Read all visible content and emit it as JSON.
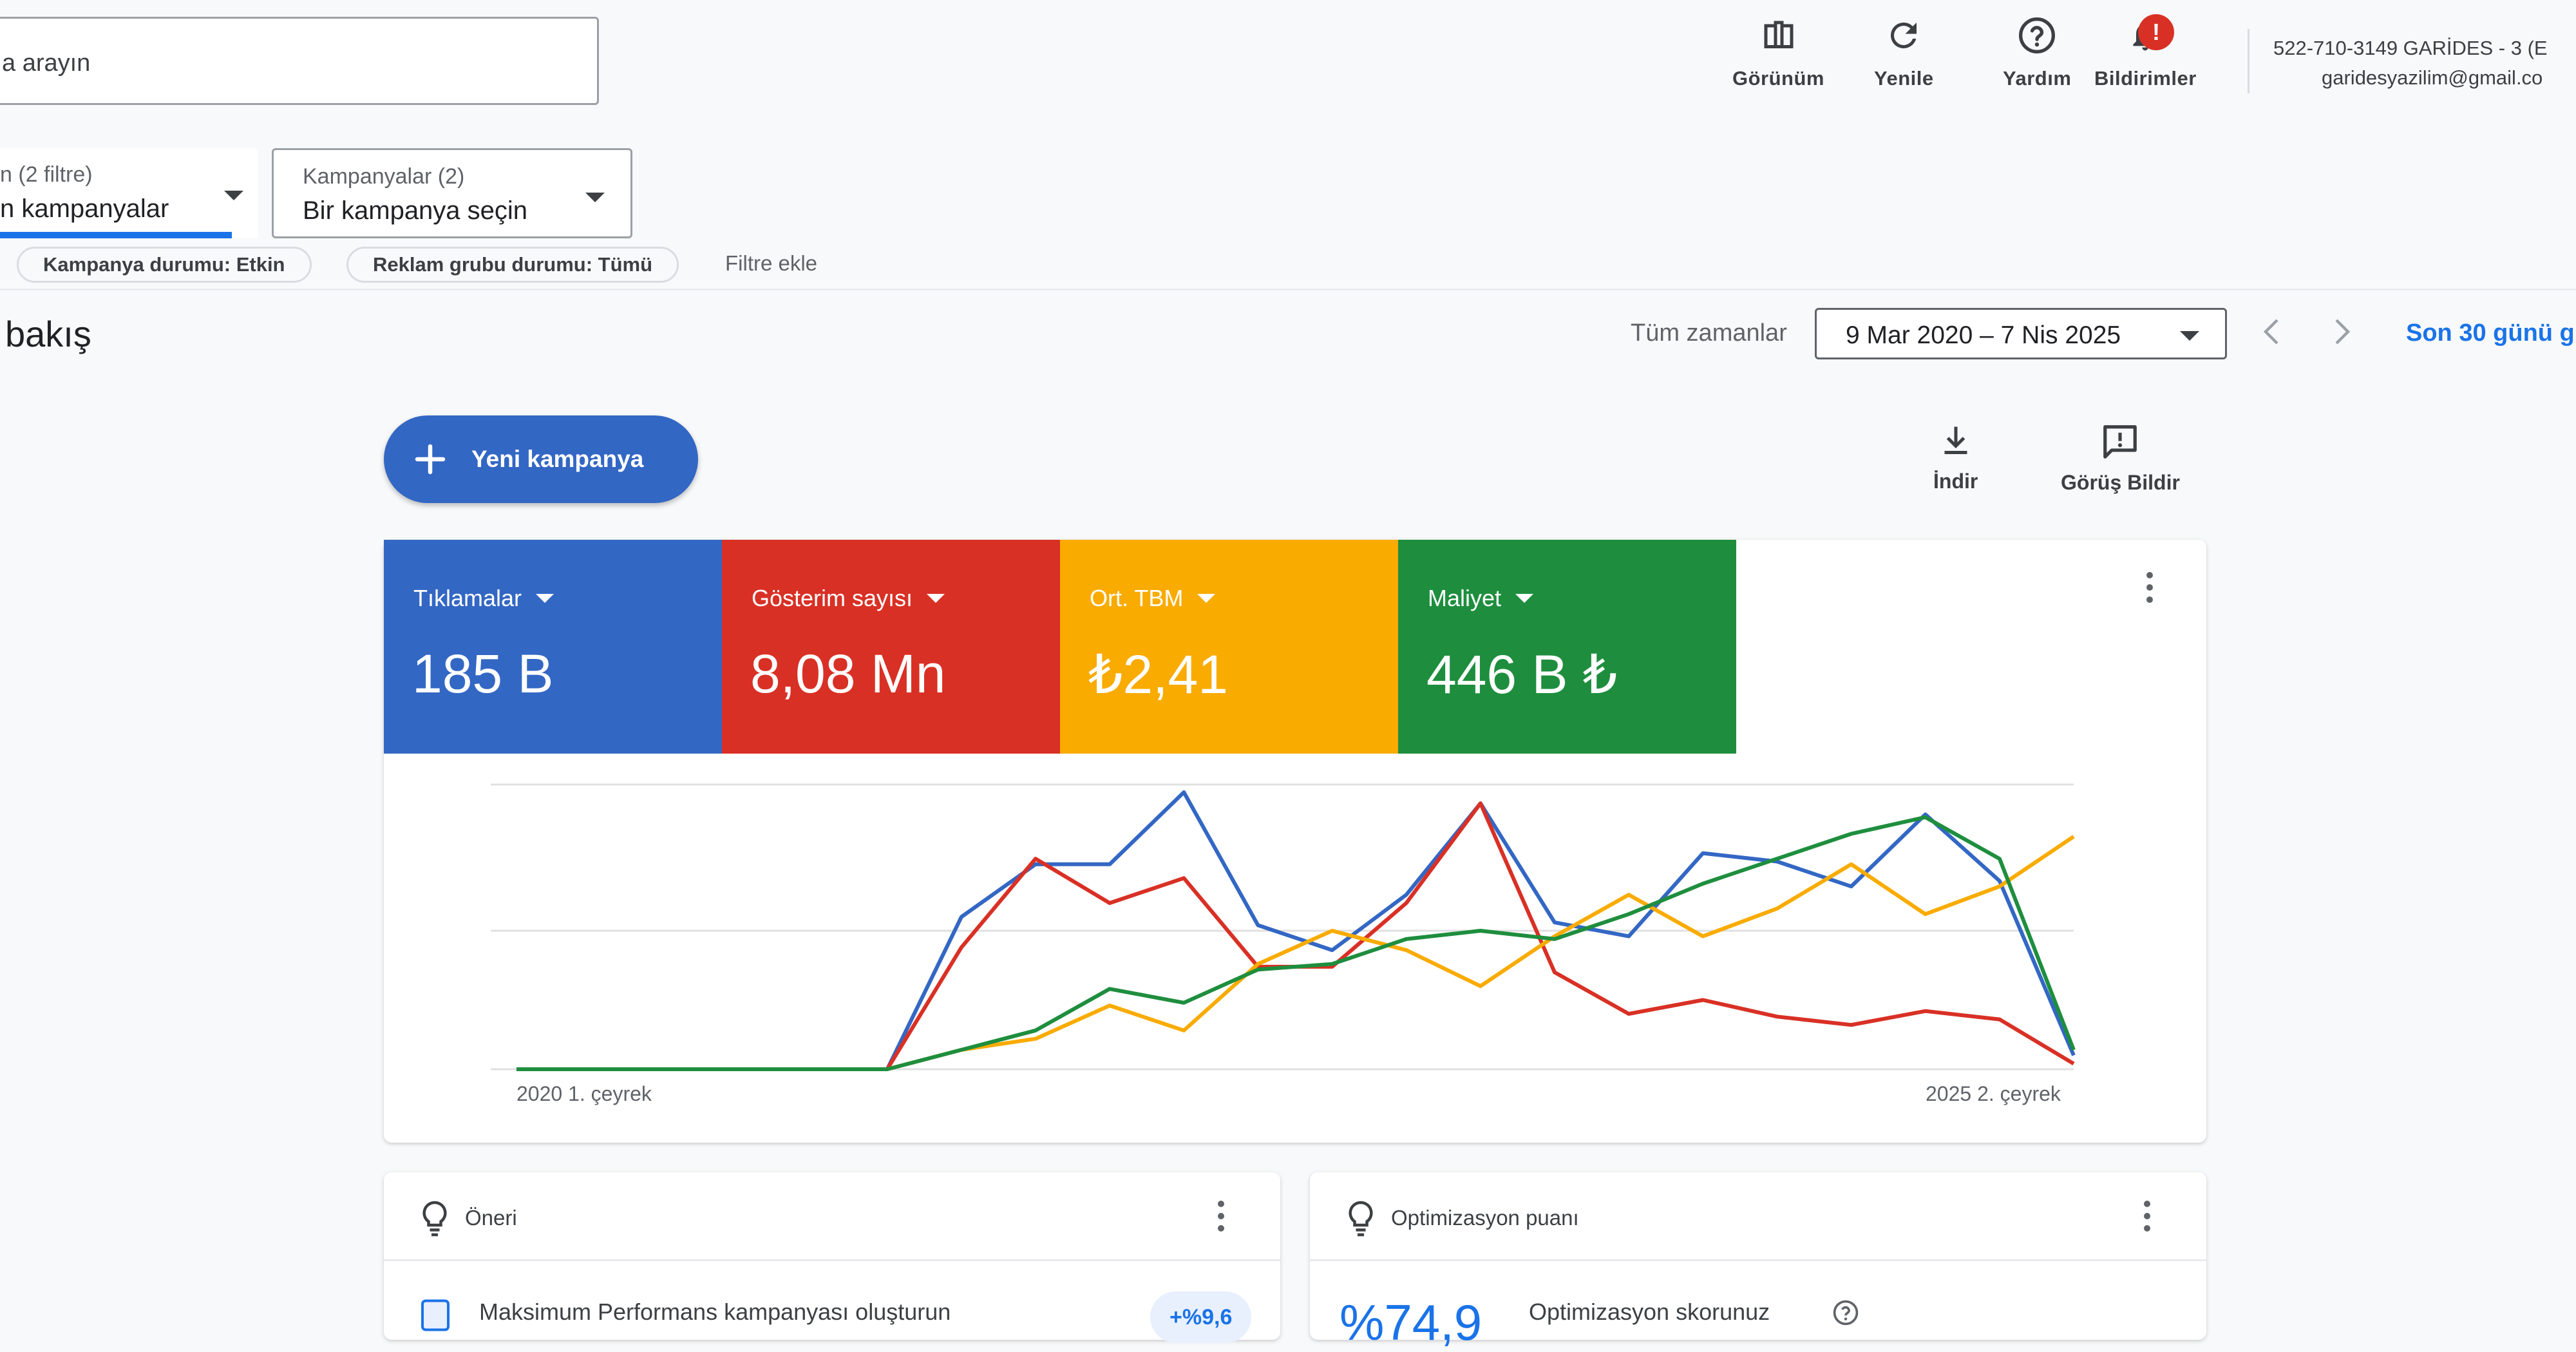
{
  "search": {
    "placeholder_visible": "a arayın"
  },
  "top_actions": [
    {
      "label": "Görünüm",
      "icon": "columns-icon"
    },
    {
      "label": "Yenile",
      "icon": "refresh-icon"
    },
    {
      "label": "Yardım",
      "icon": "help-icon"
    },
    {
      "label": "Bildirimler",
      "icon": "bell-icon",
      "badge": "!"
    }
  ],
  "account": {
    "line1": "522-710-3149 GARİDES - 3 (E",
    "line2": "garidesyazilim@gmail.co"
  },
  "filters": {
    "dd1": {
      "small": "n (2 filtre)",
      "big": "n kampanyalar"
    },
    "dd2": {
      "small": "Kampanyalar (2)",
      "big": "Bir kampanya seçin"
    },
    "chips": [
      "Kampanya durumu: Etkin",
      "Reklam grubu durumu: Tümü"
    ],
    "add": "Filtre ekle"
  },
  "page": {
    "title": "l bakış",
    "range_label": "Tüm zamanlar",
    "date_range": "9 Mar 2020 – 7 Nis 2025",
    "last30": "Son 30 günü g"
  },
  "toolbar": {
    "new_campaign": "Yeni kampanya",
    "download": "İndir",
    "feedback": "Görüş Bildir"
  },
  "metrics": [
    {
      "label": "Tıklamalar",
      "value": "185 B",
      "color": "#3367c4"
    },
    {
      "label": "Gösterim sayısı",
      "value": "8,08 Mn",
      "color": "#d93025"
    },
    {
      "label": "Ort. TBM",
      "value": "₺2,41",
      "color": "#f9ab00"
    },
    {
      "label": "Maliyet",
      "value": "446 B ₺",
      "color": "#1e8e3e"
    }
  ],
  "chart_data": {
    "type": "line",
    "x_start_label": "2020 1. çeyrek",
    "x_end_label": "2025 2. çeyrek",
    "ylim": [
      0,
      100
    ],
    "series": [
      {
        "color": "#3367c4",
        "values": [
          0,
          0,
          0,
          0,
          0,
          0,
          55,
          74,
          74,
          100,
          52,
          43,
          63,
          96,
          53,
          48,
          78,
          75,
          66,
          92,
          68,
          5
        ]
      },
      {
        "color": "#d93025",
        "values": [
          0,
          0,
          0,
          0,
          0,
          0,
          44,
          76,
          60,
          69,
          37,
          37,
          60,
          96,
          35,
          20,
          25,
          19,
          16,
          21,
          18,
          2
        ]
      },
      {
        "color": "#f9ab00",
        "values": [
          0,
          0,
          0,
          0,
          0,
          0,
          7,
          11,
          23,
          14,
          38,
          50,
          43,
          30,
          48,
          63,
          48,
          58,
          74,
          56,
          66,
          84
        ]
      },
      {
        "color": "#1e8e3e",
        "values": [
          0,
          0,
          0,
          0,
          0,
          0,
          7,
          14,
          29,
          24,
          36,
          38,
          47,
          50,
          47,
          56,
          67,
          76,
          85,
          91,
          76,
          7
        ]
      }
    ]
  },
  "bottom_cards": {
    "recommendation": {
      "title": "Öneri",
      "row": "Maksimum Performans kampanyası oluşturun",
      "pill": "+%9,6"
    },
    "optimization": {
      "title": "Optimizasyon puanı",
      "score": "%74,9",
      "row": "Optimizasyon skorunuz"
    }
  }
}
